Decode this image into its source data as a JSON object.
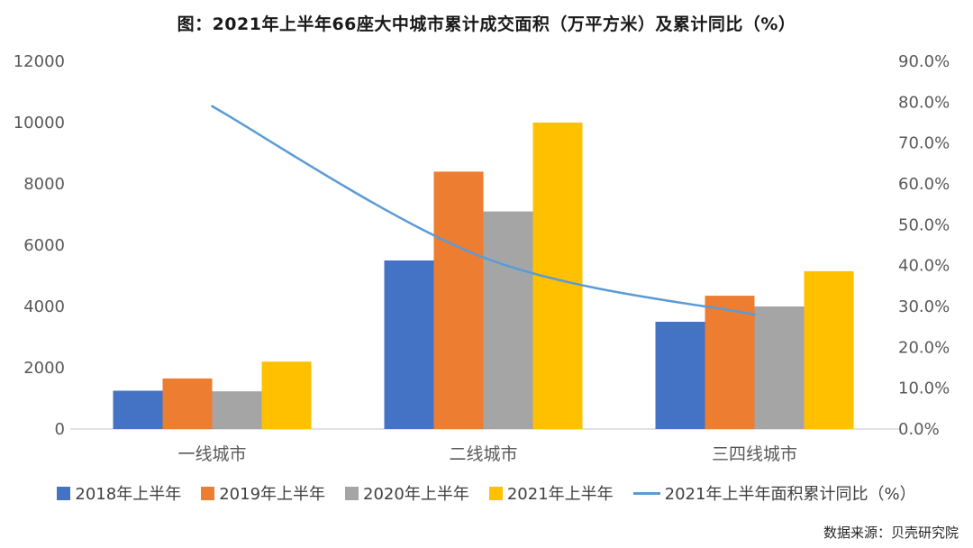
{
  "title": "图：2021年上半年66座大中城市累计成交面积（万平方米）及累计同比（%）",
  "source": "数据来源：贝壳研究院",
  "colors": {
    "bar_blue": "#4472C4",
    "bar_orange": "#ED7D31",
    "bar_gray": "#A5A5A5",
    "bar_yellow": "#FFC000",
    "line_blue": "#5B9BD5",
    "axis_text": "#595959",
    "baseline": "#D9D9D9"
  },
  "chart_data": {
    "type": "bar",
    "subtype": "grouped-bars-with-right-axis-line",
    "title": "图：2021年上半年66座大中城市累计成交面积（万平方米）及累计同比（%）",
    "categories": [
      "一线城市",
      "二线城市",
      "三四线城市"
    ],
    "series": [
      {
        "name": "2018年上半年",
        "type": "bar",
        "axis": "left",
        "color": "#4472C4",
        "values": [
          1250,
          5500,
          3500
        ]
      },
      {
        "name": "2019年上半年",
        "type": "bar",
        "axis": "left",
        "color": "#ED7D31",
        "values": [
          1650,
          8400,
          4350
        ]
      },
      {
        "name": "2020年上半年",
        "type": "bar",
        "axis": "left",
        "color": "#A5A5A5",
        "values": [
          1230,
          7100,
          4000
        ]
      },
      {
        "name": "2021年上半年",
        "type": "bar",
        "axis": "left",
        "color": "#FFC000",
        "values": [
          2200,
          10000,
          5150
        ]
      },
      {
        "name": "2021年上半年面积累计同比（%）",
        "type": "line",
        "axis": "right",
        "color": "#5B9BD5",
        "values": [
          79,
          42,
          28
        ]
      }
    ],
    "left_axis": {
      "min": 0,
      "max": 12000,
      "step": 2000,
      "ticks": [
        "12000",
        "10000",
        "8000",
        "6000",
        "4000",
        "2000",
        "0"
      ]
    },
    "right_axis": {
      "min_pct": 0,
      "max_pct": 90,
      "step_pct": 10,
      "ticks": [
        "90.0%",
        "80.0%",
        "70.0%",
        "60.0%",
        "50.0%",
        "40.0%",
        "30.0%",
        "20.0%",
        "10.0%",
        "0.0%"
      ]
    },
    "grid": false,
    "legend_position": "bottom"
  }
}
